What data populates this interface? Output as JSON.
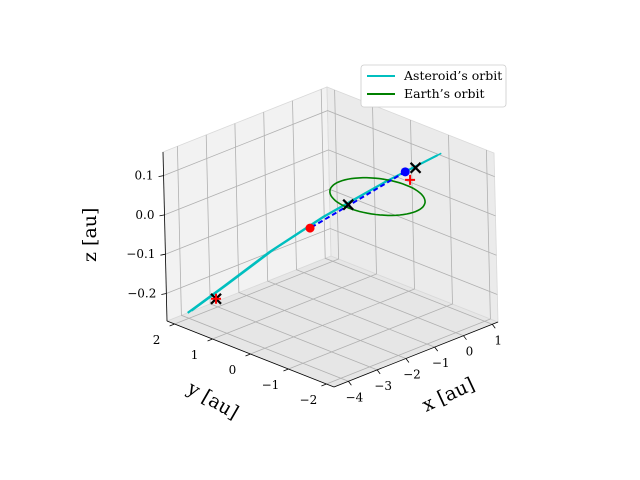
{
  "chart_data": {
    "type": "3d-line",
    "xlabel": "x [au]",
    "ylabel": "y [au]",
    "zlabel": "z [au]",
    "x_ticks": [
      "−4",
      "−3",
      "−2",
      "−1",
      "0",
      "1"
    ],
    "y_ticks": [
      "2",
      "1",
      "0",
      "−1",
      "−2"
    ],
    "z_ticks": [
      "0.1",
      "0.0",
      "−0.1",
      "−0.2"
    ],
    "xlim": [
      -4.5,
      1.2
    ],
    "ylim": [
      -2.2,
      2.2
    ],
    "zlim": [
      -0.27,
      0.16
    ],
    "grid": true,
    "legend_position": "top-right",
    "series": [
      {
        "name": "Asteroid’s orbit",
        "color": "#00bfbf",
        "points": [
          [
            0.8,
            -1.0,
            0.12
          ],
          [
            -0.2,
            -0.4,
            0.06
          ],
          [
            -1.5,
            0.3,
            -0.02
          ],
          [
            -2.6,
            0.9,
            -0.1
          ],
          [
            -3.6,
            1.4,
            -0.18
          ],
          [
            -4.3,
            1.8,
            -0.24
          ]
        ]
      },
      {
        "name": "Earth’s orbit",
        "color": "#008000",
        "radius": 1.0,
        "z": 0.0
      }
    ],
    "trajectory": {
      "color": "#0000ff",
      "style": "dashed",
      "points": [
        [
          0.2,
          -0.6,
          0.08
        ],
        [
          -0.7,
          -0.1,
          0.02
        ],
        [
          -1.7,
          0.5,
          -0.05
        ]
      ]
    },
    "markers": [
      {
        "label": "black-x",
        "color": "#000000",
        "symbol": "x",
        "points": [
          [
            -0.95,
            0.05,
            0.005
          ],
          [
            0.3,
            -0.8,
            0.095
          ],
          [
            -3.7,
            1.5,
            -0.21
          ]
        ]
      },
      {
        "label": "red-plus",
        "color": "#ff0000",
        "symbol": "+",
        "points": [
          [
            0.1,
            -0.8,
            0.07
          ],
          [
            -3.7,
            1.5,
            -0.21
          ]
        ]
      },
      {
        "label": "blue-dot",
        "color": "#0000ff",
        "symbol": "o",
        "points": [
          [
            0.2,
            -0.6,
            0.08
          ]
        ]
      },
      {
        "label": "red-dot",
        "color": "#ff0000",
        "symbol": "o",
        "points": [
          [
            -1.7,
            0.5,
            -0.05
          ]
        ]
      }
    ]
  }
}
